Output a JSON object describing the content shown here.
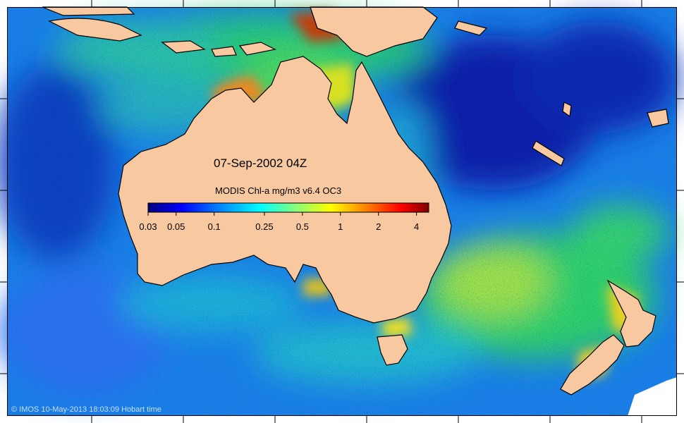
{
  "map": {
    "date_label": "07-Sep-2002 04Z",
    "colorbar": {
      "title": "MODIS Chl-a mg/m3 v6.4 OC3",
      "scale": "log",
      "range": [
        0.03,
        5
      ],
      "ticks": [
        "0.03",
        "0.05",
        "0.1",
        "0.25",
        "0.5",
        "1",
        "2",
        "4"
      ],
      "tick_values": [
        0.03,
        0.05,
        0.1,
        0.25,
        0.5,
        1,
        2,
        4
      ],
      "colors": [
        "#00007f",
        "#0000ff",
        "#007fff",
        "#00ffff",
        "#7fff7f",
        "#ffff00",
        "#ff7f00",
        "#ff0000",
        "#7f0000"
      ]
    },
    "land_color": "#f8c8a0",
    "credit": "© IMOS 10-May-2013 18:03:09 Hobart time"
  }
}
